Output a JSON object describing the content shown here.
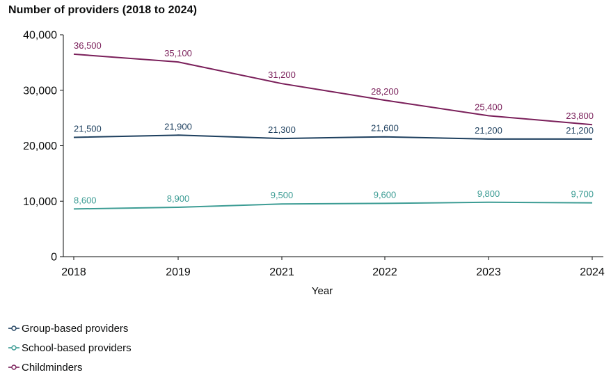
{
  "chart_data": {
    "type": "line",
    "title": "Number of providers (2018 to 2024)",
    "xlabel": "Year",
    "ylabel": "",
    "categories": [
      "2018",
      "2019",
      "2021",
      "2022",
      "2023",
      "2024"
    ],
    "ylim": [
      0,
      40000
    ],
    "yticks": [
      "0",
      "10,000",
      "20,000",
      "30,000",
      "40,000"
    ],
    "ytick_values": [
      0,
      10000,
      20000,
      30000,
      40000
    ],
    "grid": false,
    "legend_position": "bottom-left",
    "series": [
      {
        "name": "Group-based providers",
        "color": "#1d3f5e",
        "values": [
          21500,
          21900,
          21300,
          21600,
          21200,
          21200
        ],
        "labels": [
          "21,500",
          "21,900",
          "21,300",
          "21,600",
          "21,200",
          "21,200"
        ]
      },
      {
        "name": "School-based providers",
        "color": "#3c9c94",
        "values": [
          8600,
          8900,
          9500,
          9600,
          9800,
          9700
        ],
        "labels": [
          "8,600",
          "8,900",
          "9,500",
          "9,600",
          "9,800",
          "9,700"
        ]
      },
      {
        "name": "Childminders",
        "color": "#7a1f5a",
        "values": [
          36500,
          35100,
          31200,
          28200,
          25400,
          23800
        ],
        "labels": [
          "36,500",
          "35,100",
          "31,200",
          "28,200",
          "25,400",
          "23,800"
        ]
      }
    ]
  }
}
